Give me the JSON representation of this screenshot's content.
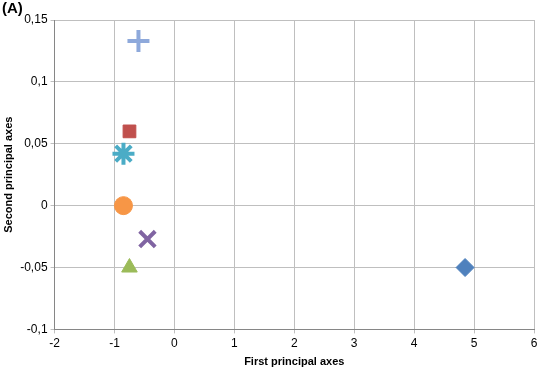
{
  "chart_data": {
    "type": "scatter",
    "title": "(A)",
    "x_label": "First principal axes",
    "y_label": "Second principal axes",
    "xlim": [
      -2,
      6
    ],
    "xticks": [
      -2,
      -1,
      0,
      1,
      2,
      3,
      4,
      5,
      6
    ],
    "ylim": [
      -0.1,
      0.15
    ],
    "yticks": [
      {
        "value": -0.1,
        "label": "-0,1"
      },
      {
        "value": -0.05,
        "label": "-0,05"
      },
      0,
      {
        "value": 0.05,
        "label": "0,05"
      },
      {
        "value": 0.1,
        "label": "0,1"
      },
      {
        "value": 0.15,
        "label": "0,15"
      }
    ],
    "grid": true,
    "series": [
      {
        "color": "#8ea9db",
        "marker": "plus",
        "x": [
          -0.6
        ],
        "values": [
          0.133
        ]
      },
      {
        "color": "#c0504d",
        "marker": "square",
        "x": [
          -0.75
        ],
        "values": [
          0.06
        ]
      },
      {
        "color": "#4bacc6",
        "marker": "star",
        "x": [
          -0.85
        ],
        "values": [
          0.042
        ]
      },
      {
        "color": "#f79646",
        "marker": "circle",
        "x": [
          -0.85
        ],
        "values": [
          0
        ]
      },
      {
        "color": "#8064a2",
        "marker": "x",
        "x": [
          -0.45
        ],
        "values": [
          -0.027
        ]
      },
      {
        "color": "#9bbb59",
        "marker": "triangle",
        "x": [
          -0.75
        ],
        "values": [
          -0.05
        ]
      },
      {
        "color": "#4f81bd",
        "marker": "diamond",
        "x": [
          4.85
        ],
        "values": [
          -0.05
        ]
      }
    ]
  }
}
